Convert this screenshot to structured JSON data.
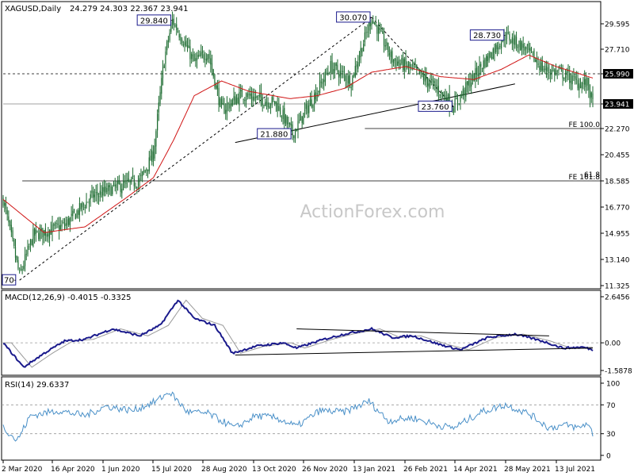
{
  "chart_data": {
    "type": "candlestick",
    "symbol_label": "XAGUSD,Daily",
    "ohlc_label": "24.279 24.303 22.367 23.941",
    "watermark": "ActionForex.com",
    "colors": {
      "candle": "#1a6a2e",
      "sma": "#d01515",
      "macd": "#1a1a8c",
      "signal": "#9a9a9a",
      "rsi": "#4a90c8",
      "trendline": "#000000",
      "label_border": "#1a1a8c"
    },
    "x_ticks": [
      "2 Mar 2020",
      "16 Apr 2020",
      "1 Jun 2020",
      "15 Jul 2020",
      "28 Aug 2020",
      "13 Oct 2020",
      "26 Nov 2020",
      "13 Jan 2021",
      "26 Feb 2021",
      "14 Apr 2021",
      "28 May 2021",
      "13 Jul 2021"
    ],
    "price_axis": {
      "min": 11.325,
      "max": 31.2,
      "ticks": [
        "29.595",
        "27.710",
        "25.990",
        "23.941",
        "22.270",
        "20.455",
        "18.585",
        "16.770",
        "14.955",
        "13.140",
        "11.325"
      ],
      "tick_values": [
        29.595,
        27.71,
        25.99,
        23.941,
        22.27,
        20.455,
        18.585,
        16.77,
        14.955,
        13.14,
        11.325
      ],
      "highlight_ticks": [
        "25.990",
        "23.941"
      ]
    },
    "price_series_monthly_anchors": [
      {
        "t": 0,
        "close": 17.3
      },
      {
        "t": 12,
        "close": 12.0
      },
      {
        "t": 22,
        "close": 14.8
      },
      {
        "t": 45,
        "close": 15.5
      },
      {
        "t": 65,
        "close": 17.5
      },
      {
        "t": 85,
        "close": 18.2
      },
      {
        "t": 100,
        "close": 18.6
      },
      {
        "t": 110,
        "close": 20.5
      },
      {
        "t": 118,
        "close": 27.0
      },
      {
        "t": 124,
        "close": 29.84
      },
      {
        "t": 140,
        "close": 26.8
      },
      {
        "t": 150,
        "close": 27.5
      },
      {
        "t": 160,
        "close": 23.5
      },
      {
        "t": 175,
        "close": 24.6
      },
      {
        "t": 200,
        "close": 24.0
      },
      {
        "t": 212,
        "close": 21.88
      },
      {
        "t": 225,
        "close": 24.0
      },
      {
        "t": 240,
        "close": 26.5
      },
      {
        "t": 255,
        "close": 25.5
      },
      {
        "t": 270,
        "close": 30.07
      },
      {
        "t": 285,
        "close": 27.0
      },
      {
        "t": 300,
        "close": 26.3
      },
      {
        "t": 318,
        "close": 25.0
      },
      {
        "t": 330,
        "close": 23.76
      },
      {
        "t": 350,
        "close": 26.5
      },
      {
        "t": 368,
        "close": 28.73
      },
      {
        "t": 382,
        "close": 27.8
      },
      {
        "t": 396,
        "close": 26.3
      },
      {
        "t": 410,
        "close": 26.0
      },
      {
        "t": 420,
        "close": 25.4
      },
      {
        "t": 428,
        "close": 25.3
      },
      {
        "t": 432,
        "close": 23.941
      }
    ],
    "total_bars": 433,
    "sma_anchors": [
      {
        "t": 0,
        "v": 17.3
      },
      {
        "t": 30,
        "v": 15.0
      },
      {
        "t": 60,
        "v": 15.4
      },
      {
        "t": 90,
        "v": 17.4
      },
      {
        "t": 110,
        "v": 18.8
      },
      {
        "t": 125,
        "v": 21.5
      },
      {
        "t": 140,
        "v": 24.5
      },
      {
        "t": 160,
        "v": 25.5
      },
      {
        "t": 180,
        "v": 24.8
      },
      {
        "t": 210,
        "v": 24.3
      },
      {
        "t": 230,
        "v": 24.5
      },
      {
        "t": 250,
        "v": 25.0
      },
      {
        "t": 270,
        "v": 26.1
      },
      {
        "t": 295,
        "v": 26.5
      },
      {
        "t": 320,
        "v": 25.8
      },
      {
        "t": 345,
        "v": 25.6
      },
      {
        "t": 365,
        "v": 26.3
      },
      {
        "t": 385,
        "v": 27.3
      },
      {
        "t": 405,
        "v": 26.5
      },
      {
        "t": 432,
        "v": 25.7
      }
    ],
    "swing_labels": [
      {
        "t": 8,
        "price": 11.7,
        "text": "70",
        "pos": "left"
      },
      {
        "t": 124,
        "price": 29.84,
        "text": "29.840",
        "pos": "left"
      },
      {
        "t": 212,
        "price": 21.88,
        "text": "21.880",
        "pos": "left"
      },
      {
        "t": 270,
        "price": 30.07,
        "text": "30.070",
        "pos": "left"
      },
      {
        "t": 330,
        "price": 23.76,
        "text": "23.760",
        "pos": "left"
      },
      {
        "t": 368,
        "price": 28.73,
        "text": "28.730",
        "pos": "left"
      }
    ],
    "horizontal_lines": [
      {
        "price": 25.99,
        "style": "dashed",
        "label": ""
      },
      {
        "price": 23.941,
        "style": "solid-gray",
        "label": ""
      },
      {
        "price": 22.27,
        "style": "solid",
        "label": "FE 100.0",
        "from_t": 265
      },
      {
        "price": 18.585,
        "style": "solid",
        "label": "FE 161.8",
        "from_t": 14,
        "label_top": "61.8"
      }
    ],
    "trendlines": [
      {
        "t1": 170,
        "p1": 21.3,
        "t2": 375,
        "p2": 25.3,
        "style": "solid"
      },
      {
        "t1": 12,
        "p1": 11.7,
        "t2": 270,
        "p2": 30.07,
        "style": "dashed"
      },
      {
        "t1": 270,
        "p1": 30.07,
        "t2": 330,
        "p2": 23.76,
        "style": "dashed"
      }
    ],
    "macd": {
      "label": "MACD(12,26,9) -0.4015 -0.3325",
      "min": -1.5878,
      "max": 2.6456,
      "ticks": [
        "2.6456",
        "0.00",
        "-1.5878"
      ],
      "tick_values": [
        2.6456,
        0.0,
        -1.5878
      ],
      "anchors": [
        {
          "t": 0,
          "v": 0.0
        },
        {
          "t": 15,
          "v": -1.4
        },
        {
          "t": 30,
          "v": -0.6
        },
        {
          "t": 45,
          "v": 0.1
        },
        {
          "t": 60,
          "v": 0.2
        },
        {
          "t": 80,
          "v": 0.8
        },
        {
          "t": 100,
          "v": 0.4
        },
        {
          "t": 115,
          "v": 1.0
        },
        {
          "t": 128,
          "v": 2.45
        },
        {
          "t": 140,
          "v": 1.4
        },
        {
          "t": 155,
          "v": 1.0
        },
        {
          "t": 168,
          "v": -0.6
        },
        {
          "t": 185,
          "v": -0.2
        },
        {
          "t": 205,
          "v": 0.0
        },
        {
          "t": 215,
          "v": -0.3
        },
        {
          "t": 235,
          "v": 0.2
        },
        {
          "t": 250,
          "v": 0.5
        },
        {
          "t": 270,
          "v": 0.8
        },
        {
          "t": 285,
          "v": 0.3
        },
        {
          "t": 300,
          "v": 0.4
        },
        {
          "t": 320,
          "v": -0.1
        },
        {
          "t": 335,
          "v": -0.4
        },
        {
          "t": 355,
          "v": 0.3
        },
        {
          "t": 375,
          "v": 0.5
        },
        {
          "t": 395,
          "v": 0.1
        },
        {
          "t": 410,
          "v": -0.3
        },
        {
          "t": 425,
          "v": -0.25
        },
        {
          "t": 432,
          "v": -0.4
        }
      ],
      "trendlines": [
        {
          "t1": 215,
          "v1": 0.8,
          "t2": 400,
          "v2": 0.4
        },
        {
          "t1": 170,
          "v1": -0.7,
          "t2": 432,
          "v2": -0.3
        }
      ]
    },
    "rsi": {
      "label": "RSI(14) 29.6337",
      "min": 0,
      "max": 100,
      "ticks": [
        "100",
        "70",
        "30",
        "0"
      ],
      "tick_values": [
        100,
        70,
        30,
        0
      ],
      "dashed_levels": [
        70,
        30
      ],
      "anchors": [
        {
          "t": 0,
          "v": 40
        },
        {
          "t": 10,
          "v": 20
        },
        {
          "t": 20,
          "v": 55
        },
        {
          "t": 40,
          "v": 62
        },
        {
          "t": 60,
          "v": 55
        },
        {
          "t": 75,
          "v": 68
        },
        {
          "t": 95,
          "v": 62
        },
        {
          "t": 112,
          "v": 75
        },
        {
          "t": 122,
          "v": 88
        },
        {
          "t": 135,
          "v": 60
        },
        {
          "t": 150,
          "v": 58
        },
        {
          "t": 170,
          "v": 38
        },
        {
          "t": 185,
          "v": 55
        },
        {
          "t": 200,
          "v": 52
        },
        {
          "t": 215,
          "v": 40
        },
        {
          "t": 232,
          "v": 62
        },
        {
          "t": 250,
          "v": 60
        },
        {
          "t": 268,
          "v": 75
        },
        {
          "t": 282,
          "v": 48
        },
        {
          "t": 300,
          "v": 52
        },
        {
          "t": 318,
          "v": 42
        },
        {
          "t": 330,
          "v": 38
        },
        {
          "t": 350,
          "v": 60
        },
        {
          "t": 368,
          "v": 70
        },
        {
          "t": 385,
          "v": 58
        },
        {
          "t": 400,
          "v": 38
        },
        {
          "t": 412,
          "v": 42
        },
        {
          "t": 422,
          "v": 38
        },
        {
          "t": 428,
          "v": 45
        },
        {
          "t": 432,
          "v": 29.6
        }
      ]
    }
  }
}
